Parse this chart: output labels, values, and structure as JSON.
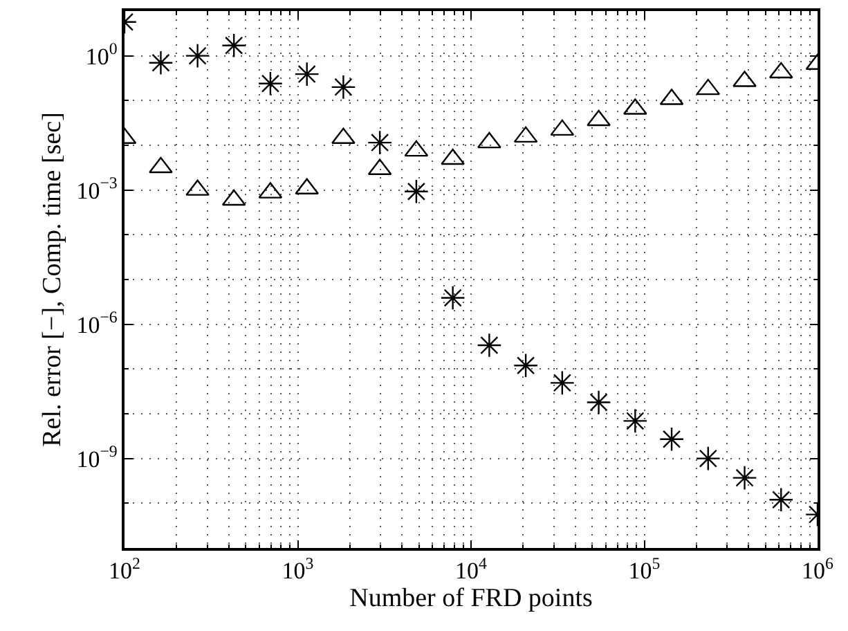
{
  "chart_data": {
    "type": "scatter",
    "xlabel": "Number of FRD points",
    "ylabel": "Rel. error [−], Comp. time [sec]",
    "x": [
      100,
      162,
      264,
      428,
      695,
      1129,
      1833,
      2976,
      4833,
      7848,
      12743,
      20691,
      33598,
      54556,
      88587,
      143845,
      233572,
      379269,
      615848,
      1000000
    ],
    "series": [
      {
        "color": "#000000",
        "marker": "cross",
        "values": [
          5.7,
          0.7,
          1.0,
          1.7,
          0.24,
          0.39,
          0.2,
          0.0115,
          0.00093,
          3.9e-06,
          3.4e-07,
          1.2e-07,
          4.9e-08,
          1.8e-08,
          6.9e-09,
          2.7e-09,
          1e-09,
          3.7e-10,
          1.2e-10,
          5.6e-11
        ]
      },
      {
        "color": "#000000",
        "marker": "triangle",
        "values": [
          0.0144,
          0.0032,
          0.001,
          0.0006,
          0.00087,
          0.00107,
          0.0144,
          0.0029,
          0.0075,
          0.0049,
          0.0115,
          0.0154,
          0.022,
          0.036,
          0.065,
          0.107,
          0.178,
          0.27,
          0.42,
          0.65
        ]
      }
    ],
    "log": "xy",
    "xlim": [
      100,
      1000000
    ],
    "ylim": [
      1e-11,
      10
    ],
    "xticks": [
      {
        "value": 100,
        "label": "10$^{2}$"
      },
      {
        "value": 1000,
        "label": "10$^{3}$"
      },
      {
        "value": 10000,
        "label": "10$^{4}$"
      },
      {
        "value": 100000,
        "label": "10$^{5}$"
      },
      {
        "value": 1000000,
        "label": "10$^{6}$"
      }
    ],
    "yticks": [
      {
        "value": 1e-09,
        "label": "10$^{−9}$"
      },
      {
        "value": 1e-06,
        "label": "10$^{−6}$"
      },
      {
        "value": 0.001,
        "label": "10$^{−3}$"
      },
      {
        "value": 1,
        "label": "10$^{0}$"
      }
    ],
    "grid": true
  }
}
